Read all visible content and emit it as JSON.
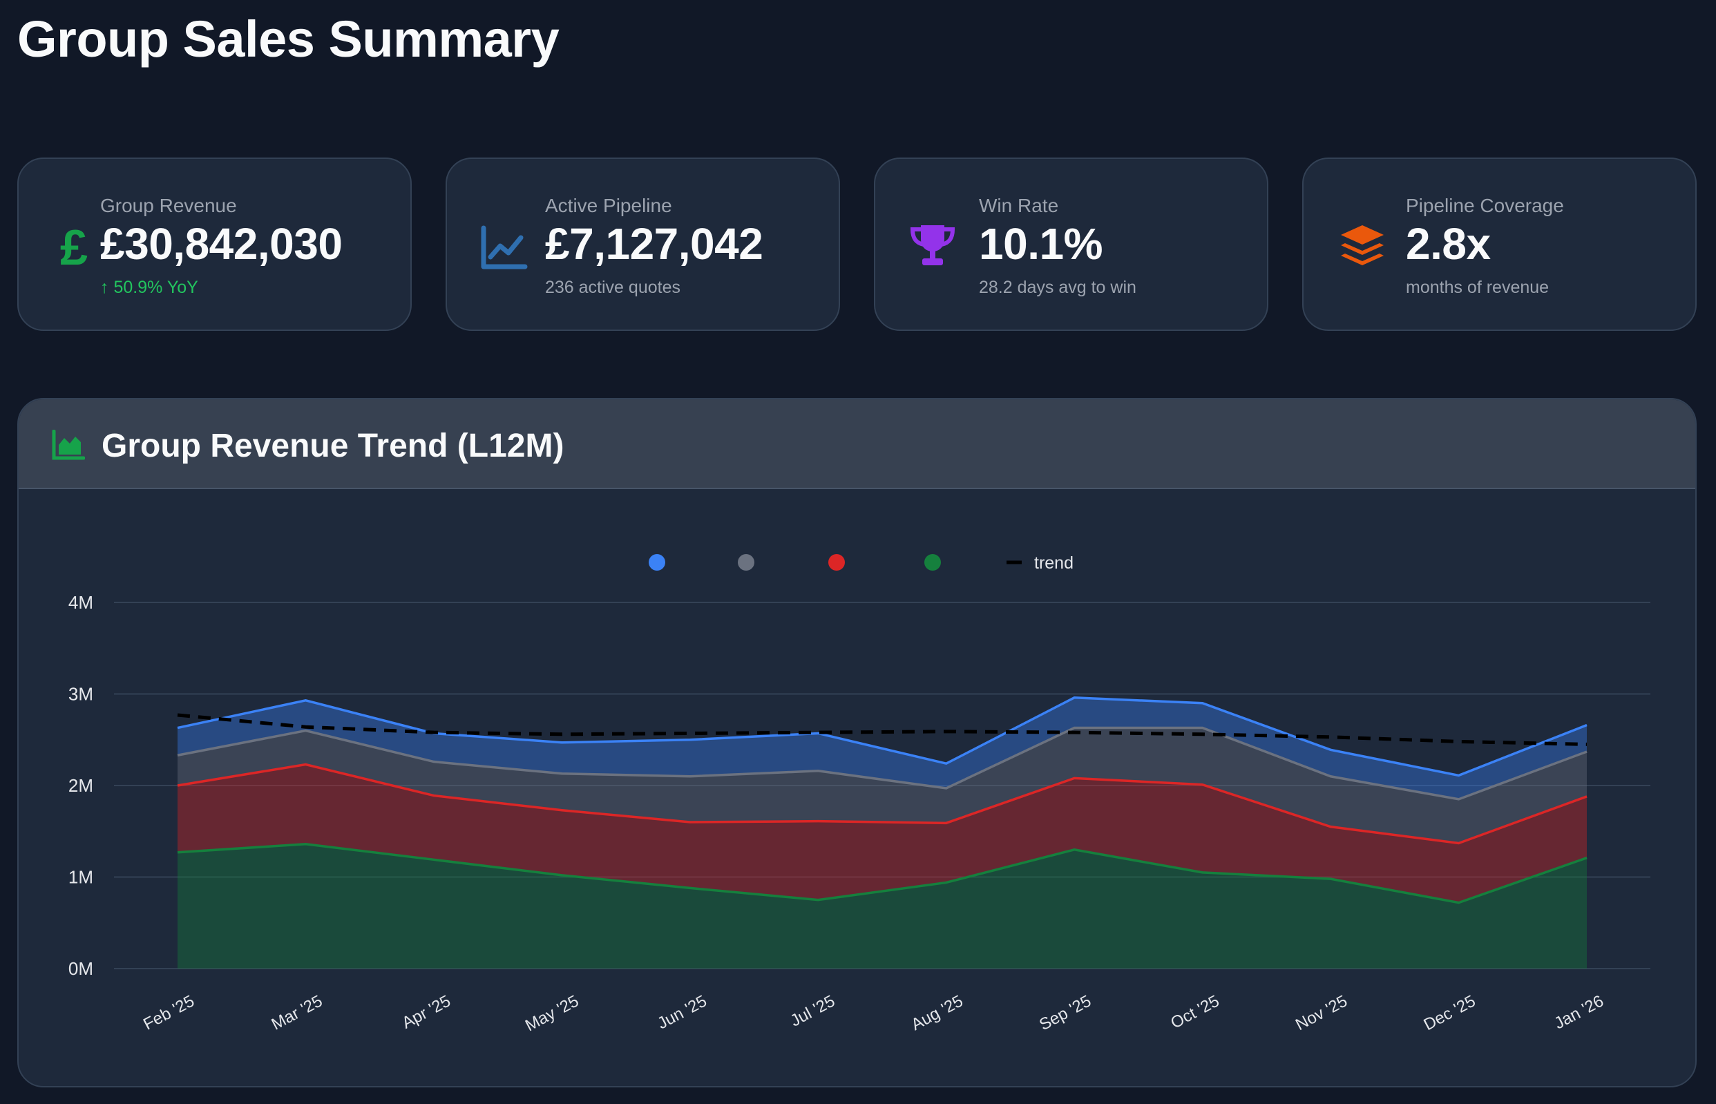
{
  "page": {
    "title": "Group Sales Summary"
  },
  "kpis": [
    {
      "label": "Group Revenue",
      "value": "£30,842,030",
      "sub": "↑ 50.9% YoY",
      "icon": "pound-icon",
      "color": "#16a34a"
    },
    {
      "label": "Active Pipeline",
      "value": "£7,127,042",
      "sub": "236 active quotes",
      "icon": "line-chart-icon",
      "color": "#2f6fb0"
    },
    {
      "label": "Win Rate",
      "value": "10.1%",
      "sub": "28.2 days avg to win",
      "icon": "trophy-icon",
      "color": "#9333ea"
    },
    {
      "label": "Pipeline Coverage",
      "value": "2.8x",
      "sub": "months of revenue",
      "icon": "layers-icon",
      "color": "#ea580c"
    }
  ],
  "chart_panel": {
    "title": "Group Revenue Trend (L12M)",
    "icon": "area-chart-icon",
    "icon_color": "#16a34a"
  },
  "chart_data": {
    "type": "area",
    "stacked": true,
    "categories": [
      "Feb '25",
      "Mar '25",
      "Apr '25",
      "May '25",
      "Jun '25",
      "Jul '25",
      "Aug '25",
      "Sep '25",
      "Oct '25",
      "Nov '25",
      "Dec '25",
      "Jan '26"
    ],
    "series": [
      {
        "color": "#15803d",
        "values": [
          1270000,
          1360000,
          1190000,
          1020000,
          880000,
          750000,
          940000,
          1300000,
          1050000,
          980000,
          720000,
          1210000
        ]
      },
      {
        "color": "#dc2626",
        "values": [
          730000,
          870000,
          700000,
          710000,
          720000,
          860000,
          650000,
          780000,
          960000,
          570000,
          650000,
          670000
        ]
      },
      {
        "color": "#6b7280",
        "values": [
          330000,
          370000,
          370000,
          400000,
          500000,
          550000,
          380000,
          550000,
          620000,
          550000,
          480000,
          490000
        ]
      },
      {
        "color": "#3b82f6",
        "values": [
          300000,
          330000,
          310000,
          340000,
          400000,
          410000,
          270000,
          330000,
          270000,
          290000,
          260000,
          290000
        ]
      }
    ],
    "trend": {
      "name": "trend",
      "color": "#000000",
      "values": [
        2770000,
        2640000,
        2580000,
        2560000,
        2570000,
        2580000,
        2590000,
        2580000,
        2560000,
        2530000,
        2480000,
        2450000
      ]
    },
    "y_ticks": [
      "0M",
      "1M",
      "2M",
      "3M",
      "4M"
    ],
    "ylim": [
      0,
      4000000
    ],
    "grid": true,
    "legend": "top-center"
  }
}
